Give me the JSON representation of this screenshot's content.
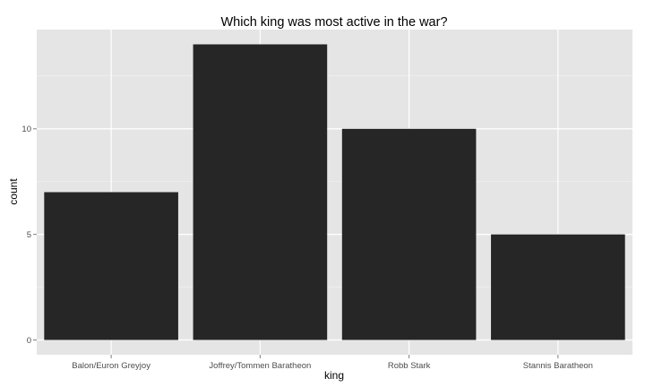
{
  "chart_data": {
    "type": "bar",
    "title": "Which king was most active in the war?",
    "xlabel": "king",
    "ylabel": "count",
    "categories": [
      "Balon/Euron Greyjoy",
      "Joffrey/Tommen Baratheon",
      "Robb Stark",
      "Stannis Baratheon"
    ],
    "values": [
      7,
      14,
      10,
      5
    ],
    "ylim": [
      -0.7,
      14.7
    ],
    "yticks": [
      0,
      5,
      10
    ],
    "grid": true,
    "legend": "none"
  },
  "colors": {
    "panel_background": "#e5e5e5",
    "grid_major": "#ffffff",
    "grid_minor": "#f2f2f2",
    "bar_fill": "#262626",
    "tick_mark": "#7f7f7f"
  }
}
